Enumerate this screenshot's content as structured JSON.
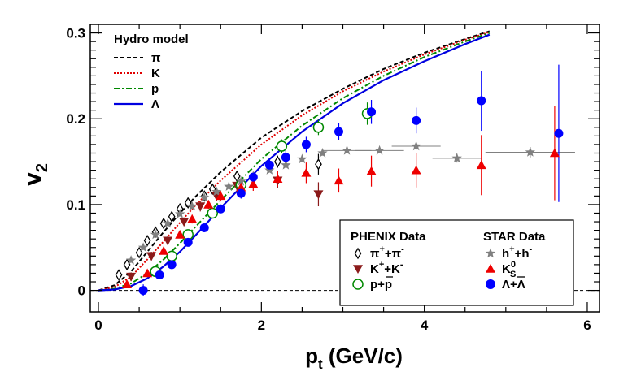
{
  "chart_data": {
    "type": "scatter",
    "xlabel": "p_t (GeV/c)",
    "ylabel": "v_2",
    "xlim": [
      -0.1,
      6.15
    ],
    "ylim": [
      -0.025,
      0.31
    ],
    "x_ticks": [
      "0",
      "2",
      "4",
      "6"
    ],
    "y_ticks": [
      "0",
      "0.1",
      "0.2",
      "0.3"
    ],
    "hydro_legend_title": "Hydro model",
    "hydro_curves": [
      {
        "name": "π",
        "color": "#000000",
        "dash": "5,3",
        "points": [
          [
            0,
            0
          ],
          [
            0.2,
            0.006
          ],
          [
            0.4,
            0.022
          ],
          [
            0.6,
            0.045
          ],
          [
            0.8,
            0.068
          ],
          [
            1.0,
            0.09
          ],
          [
            1.2,
            0.11
          ],
          [
            1.5,
            0.138
          ],
          [
            2.0,
            0.178
          ],
          [
            2.5,
            0.209
          ],
          [
            3.0,
            0.235
          ],
          [
            3.5,
            0.258
          ],
          [
            4.0,
            0.277
          ],
          [
            4.5,
            0.293
          ],
          [
            4.8,
            0.302
          ]
        ]
      },
      {
        "name": "K",
        "color": "#e00000",
        "dash": "2,2",
        "points": [
          [
            0,
            0
          ],
          [
            0.2,
            0.004
          ],
          [
            0.4,
            0.016
          ],
          [
            0.6,
            0.036
          ],
          [
            0.8,
            0.057
          ],
          [
            1.0,
            0.079
          ],
          [
            1.2,
            0.1
          ],
          [
            1.5,
            0.128
          ],
          [
            2.0,
            0.17
          ],
          [
            2.5,
            0.204
          ],
          [
            3.0,
            0.232
          ],
          [
            3.5,
            0.255
          ],
          [
            4.0,
            0.275
          ],
          [
            4.5,
            0.292
          ],
          [
            4.8,
            0.301
          ]
        ]
      },
      {
        "name": "p",
        "color": "#008800",
        "dash": "7,3,2,3",
        "points": [
          [
            0,
            0
          ],
          [
            0.2,
            0.002
          ],
          [
            0.4,
            0.008
          ],
          [
            0.6,
            0.02
          ],
          [
            0.8,
            0.036
          ],
          [
            1.0,
            0.055
          ],
          [
            1.2,
            0.075
          ],
          [
            1.5,
            0.105
          ],
          [
            2.0,
            0.153
          ],
          [
            2.5,
            0.192
          ],
          [
            3.0,
            0.224
          ],
          [
            3.5,
            0.25
          ],
          [
            4.0,
            0.272
          ],
          [
            4.5,
            0.29
          ],
          [
            4.8,
            0.3
          ]
        ]
      },
      {
        "name": "Λ",
        "color": "#0000e0",
        "dash": "",
        "points": [
          [
            0,
            0
          ],
          [
            0.2,
            0.001
          ],
          [
            0.4,
            0.005
          ],
          [
            0.6,
            0.014
          ],
          [
            0.8,
            0.028
          ],
          [
            1.0,
            0.045
          ],
          [
            1.2,
            0.065
          ],
          [
            1.5,
            0.096
          ],
          [
            2.0,
            0.145
          ],
          [
            2.5,
            0.185
          ],
          [
            3.0,
            0.218
          ],
          [
            3.5,
            0.245
          ],
          [
            4.0,
            0.267
          ],
          [
            4.5,
            0.287
          ],
          [
            4.8,
            0.298
          ]
        ]
      }
    ],
    "phenix_legend_title": "PHENIX Data",
    "star_legend_title": "STAR Data",
    "phenix_series": [
      {
        "name": "π⁺+π⁻",
        "label_base": "π",
        "sup1": "+",
        "mid": "+π",
        "sup2": "-",
        "marker": "diamond-open",
        "color": "#000000",
        "points": [
          [
            0.25,
            0.018,
            0.003
          ],
          [
            0.35,
            0.03,
            0.003
          ],
          [
            0.5,
            0.044,
            0.003
          ],
          [
            0.6,
            0.058,
            0.003
          ],
          [
            0.7,
            0.068,
            0.003
          ],
          [
            0.8,
            0.078,
            0.003
          ],
          [
            0.9,
            0.086,
            0.003
          ],
          [
            1.0,
            0.095,
            0.003
          ],
          [
            1.1,
            0.102,
            0.003
          ],
          [
            1.3,
            0.11,
            0.004
          ],
          [
            1.4,
            0.118,
            0.004
          ],
          [
            1.7,
            0.133,
            0.005
          ],
          [
            2.2,
            0.15,
            0.007
          ],
          [
            2.7,
            0.147,
            0.012
          ]
        ]
      },
      {
        "name": "K⁺+K⁻",
        "label_base": "K",
        "sup1": "+",
        "mid": "+K",
        "sup2": "-",
        "marker": "triangle-down",
        "color": "#8b1a1a",
        "points": [
          [
            0.4,
            0.016,
            0.005
          ],
          [
            0.65,
            0.04,
            0.005
          ],
          [
            0.85,
            0.058,
            0.005
          ],
          [
            1.05,
            0.08,
            0.005
          ],
          [
            1.25,
            0.098,
            0.006
          ],
          [
            1.45,
            0.11,
            0.006
          ],
          [
            1.7,
            0.122,
            0.007
          ],
          [
            2.2,
            0.128,
            0.009
          ],
          [
            2.7,
            0.112,
            0.014
          ]
        ]
      },
      {
        "name": "p+p̄",
        "label_base": "p+p",
        "sup1": "",
        "mid": "",
        "sup2": "",
        "marker": "circle-open",
        "color": "#008800",
        "points": [
          [
            0.7,
            0.022,
            0.004
          ],
          [
            0.9,
            0.04,
            0.004
          ],
          [
            1.1,
            0.065,
            0.004
          ],
          [
            1.4,
            0.09,
            0.005
          ],
          [
            1.75,
            0.123,
            0.006
          ],
          [
            2.25,
            0.168,
            0.008
          ],
          [
            2.7,
            0.19,
            0.009
          ],
          [
            3.3,
            0.206,
            0.013
          ]
        ]
      }
    ],
    "star_series": [
      {
        "name": "h⁺+h⁻",
        "label_base": "h",
        "sup1": "+",
        "mid": "+h",
        "sup2": "-",
        "marker": "star",
        "color": "#808080",
        "points": [
          [
            0.4,
            0.035,
            0.002
          ],
          [
            0.55,
            0.05,
            0.002
          ],
          [
            0.7,
            0.065,
            0.002
          ],
          [
            0.85,
            0.078,
            0.002
          ],
          [
            1.0,
            0.089,
            0.002
          ],
          [
            1.15,
            0.098,
            0.002
          ],
          [
            1.3,
            0.108,
            0.002
          ],
          [
            1.45,
            0.115,
            0.002
          ],
          [
            1.6,
            0.121,
            0.002
          ],
          [
            1.75,
            0.127,
            0.002
          ],
          [
            1.9,
            0.133,
            0.002
          ],
          [
            2.1,
            0.14,
            0.002
          ],
          [
            2.3,
            0.146,
            0.002
          ],
          [
            2.5,
            0.153,
            0.003
          ],
          [
            2.75,
            0.16,
            0.003
          ],
          [
            3.05,
            0.163,
            0.003
          ],
          [
            3.45,
            0.163,
            0.003
          ],
          [
            3.9,
            0.168,
            0.004
          ],
          [
            4.4,
            0.154,
            0.005
          ],
          [
            5.3,
            0.161,
            0.006
          ]
        ]
      },
      {
        "name": "K⁰S",
        "label_base": "K",
        "sup1": "0",
        "mid": "",
        "sup2": "",
        "sub": "S",
        "marker": "triangle-up",
        "color": "#ee0000",
        "points": [
          [
            0.35,
            0.007,
            0.004
          ],
          [
            0.6,
            0.02,
            0.004
          ],
          [
            0.8,
            0.046,
            0.004
          ],
          [
            1.0,
            0.065,
            0.004
          ],
          [
            1.15,
            0.083,
            0.005
          ],
          [
            1.35,
            0.1,
            0.005
          ],
          [
            1.5,
            0.11,
            0.006
          ],
          [
            1.75,
            0.12,
            0.007
          ],
          [
            1.9,
            0.124,
            0.008
          ],
          [
            2.2,
            0.13,
            0.009
          ],
          [
            2.55,
            0.137,
            0.012
          ],
          [
            2.95,
            0.128,
            0.014
          ],
          [
            3.35,
            0.139,
            0.018
          ],
          [
            3.9,
            0.14,
            0.02
          ],
          [
            4.7,
            0.146,
            0.035
          ],
          [
            5.6,
            0.16,
            0.055
          ]
        ]
      },
      {
        "name": "Λ+Λ̄",
        "label_base": "Λ+Λ",
        "sup1": "",
        "mid": "",
        "sup2": "",
        "marker": "circle",
        "color": "#0000ff",
        "points": [
          [
            0.55,
            0.0,
            0.007
          ],
          [
            0.75,
            0.018,
            0.004
          ],
          [
            0.9,
            0.03,
            0.004
          ],
          [
            1.1,
            0.056,
            0.004
          ],
          [
            1.3,
            0.073,
            0.004
          ],
          [
            1.5,
            0.095,
            0.005
          ],
          [
            1.75,
            0.113,
            0.006
          ],
          [
            1.9,
            0.132,
            0.006
          ],
          [
            2.1,
            0.146,
            0.007
          ],
          [
            2.3,
            0.155,
            0.008
          ],
          [
            2.55,
            0.17,
            0.009
          ],
          [
            2.95,
            0.185,
            0.01
          ],
          [
            3.35,
            0.208,
            0.014
          ],
          [
            3.9,
            0.198,
            0.015
          ],
          [
            4.7,
            0.221,
            0.035
          ],
          [
            5.65,
            0.183,
            0.08
          ]
        ]
      }
    ]
  }
}
